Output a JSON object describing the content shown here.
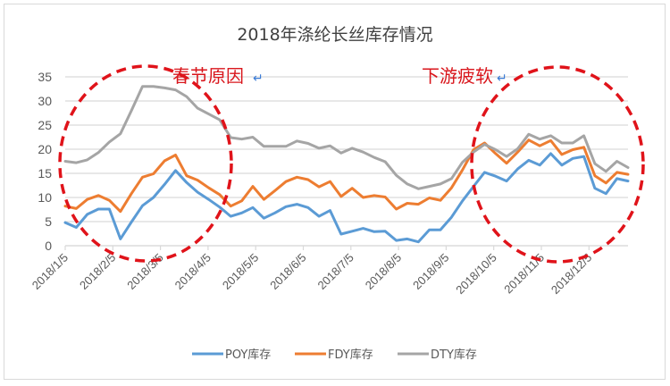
{
  "chart_data": {
    "type": "line",
    "title": "2018年涤纶长丝库存情况",
    "xlabel": "",
    "ylabel": "",
    "ylim": [
      0,
      35
    ],
    "yticks": [
      "0",
      "5",
      "10",
      "15",
      "20",
      "25",
      "30",
      "35"
    ],
    "xticks": [
      "2018/1/5",
      "2018/2/5",
      "2018/3/5",
      "2018/4/5",
      "2018/5/5",
      "2018/6/5",
      "2018/7/5",
      "2018/8/5",
      "2018/9/5",
      "2018/10/5",
      "2018/11/5",
      "2018/12/5"
    ],
    "grid": true,
    "legend_position": "bottom",
    "series": [
      {
        "name": "POY库存",
        "color": "#5b9bd5",
        "values": [
          4.8,
          3.8,
          6.5,
          7.6,
          7.6,
          1.4,
          4.9,
          8.3,
          10.0,
          12.7,
          15.6,
          13.1,
          11.1,
          9.6,
          8.0,
          6.1,
          6.8,
          7.9,
          5.7,
          6.8,
          8.1,
          8.6,
          7.9,
          6.1,
          7.3,
          2.4,
          3.0,
          3.6,
          2.9,
          3.0,
          1.1,
          1.4,
          0.8,
          3.3,
          3.3,
          5.9,
          9.3,
          12.3,
          15.2,
          14.4,
          13.4,
          15.9,
          17.7,
          16.7,
          19.1,
          16.7,
          18.1,
          18.5,
          11.9,
          10.8,
          13.9,
          13.4
        ]
      },
      {
        "name": "FDY库存",
        "color": "#ed7d31",
        "values": [
          8.2,
          7.7,
          9.6,
          10.4,
          9.4,
          7.1,
          10.8,
          14.2,
          14.9,
          17.6,
          18.8,
          14.5,
          13.6,
          12.0,
          10.6,
          8.2,
          9.3,
          12.3,
          9.6,
          11.4,
          13.3,
          14.2,
          13.7,
          12.2,
          13.3,
          10.2,
          11.9,
          10.0,
          10.4,
          10.1,
          7.6,
          8.8,
          8.6,
          9.9,
          9.4,
          12.0,
          15.7,
          19.9,
          21.3,
          19.1,
          17.1,
          19.4,
          21.9,
          20.7,
          21.8,
          18.9,
          19.9,
          20.4,
          14.5,
          13.0,
          15.2,
          14.8
        ]
      },
      {
        "name": "DTY库存",
        "color": "#a5a5a5",
        "values": [
          17.5,
          17.2,
          17.8,
          19.3,
          21.5,
          23.2,
          28.0,
          33.0,
          33.0,
          32.7,
          32.3,
          30.9,
          28.5,
          27.3,
          26.1,
          22.4,
          22.1,
          22.5,
          20.6,
          20.6,
          20.6,
          21.7,
          21.2,
          20.2,
          20.7,
          19.2,
          20.2,
          19.4,
          18.3,
          17.4,
          14.6,
          12.8,
          11.8,
          12.3,
          12.8,
          13.9,
          17.3,
          19.4,
          21.0,
          19.9,
          18.5,
          20.1,
          23.1,
          22.1,
          22.8,
          21.3,
          21.3,
          22.8,
          17.0,
          15.4,
          17.5,
          16.2
        ]
      }
    ],
    "annotations": [
      {
        "text": "春节原因",
        "marker": "↵",
        "color": "#d9161c",
        "region": "left"
      },
      {
        "text": "下游疲软",
        "marker": "↵",
        "color": "#d9161c",
        "region": "right"
      }
    ]
  }
}
